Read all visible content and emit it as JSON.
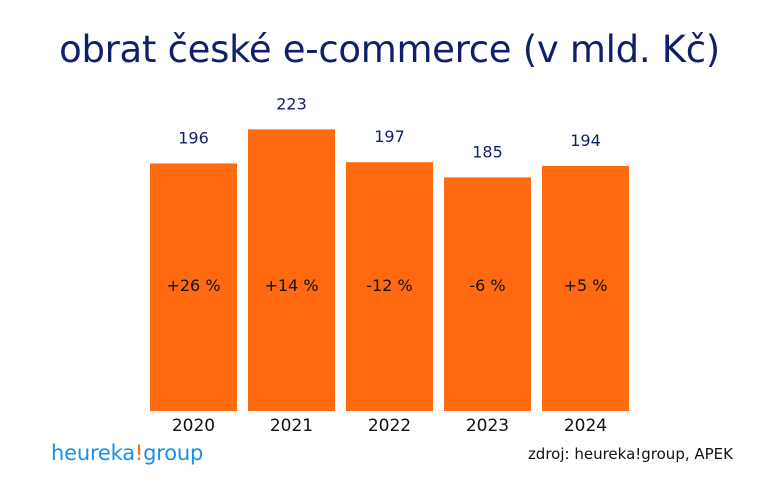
{
  "chart_data": {
    "type": "bar",
    "title": "obrat české e-commerce (v mld. Kč)",
    "categories": [
      "2020",
      "2021",
      "2022",
      "2023",
      "2024"
    ],
    "values": [
      196,
      223,
      197,
      185,
      194
    ],
    "growth_labels": [
      "+26 %",
      "+14 %",
      "-12 %",
      "-6 %",
      "+5 %"
    ],
    "bar_color": "#ff6a10",
    "value_label_color": "#0f1f6b",
    "xlabel": "",
    "ylabel": "",
    "grid": false
  },
  "brand": {
    "part1": "heureka",
    "part2": "!",
    "part3": "group"
  },
  "source": "zdroj: heureka!group, APEK"
}
